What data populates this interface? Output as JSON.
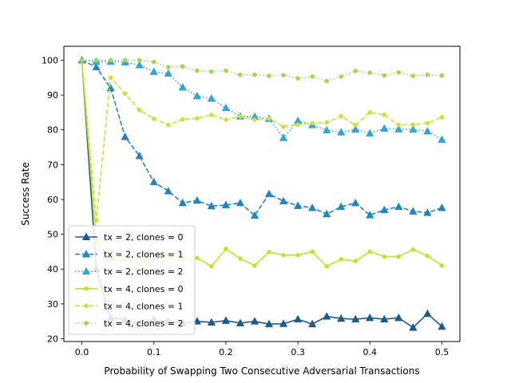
{
  "chart_data": {
    "type": "line",
    "title": "",
    "xlabel": "Probability of Swapping Two Consecutive Adversarial Transactions",
    "ylabel": "Success Rate",
    "xlim": [
      -0.025,
      0.525
    ],
    "ylim": [
      19.2,
      104
    ],
    "xticks": [
      0.0,
      0.1,
      0.2,
      0.3,
      0.4,
      0.5
    ],
    "xtick_labels": [
      "0.0",
      "0.1",
      "0.2",
      "0.3",
      "0.4",
      "0.5"
    ],
    "yticks": [
      20,
      30,
      40,
      50,
      60,
      70,
      80,
      90,
      100
    ],
    "ytick_labels": [
      "20",
      "30",
      "40",
      "50",
      "60",
      "70",
      "80",
      "90",
      "100"
    ],
    "grid": false,
    "legend_position": "lower-left",
    "x": [
      0.0,
      0.02,
      0.04,
      0.06,
      0.08,
      0.1,
      0.12,
      0.14,
      0.16,
      0.18,
      0.2,
      0.22,
      0.24,
      0.26,
      0.28,
      0.3,
      0.32,
      0.34,
      0.36,
      0.38,
      0.4,
      0.42,
      0.44,
      0.46,
      0.48,
      0.5
    ],
    "series": [
      {
        "name": "tx = 2, clones = 0",
        "color": "#1a5b8e",
        "linestyle": "solid",
        "marker": "triangle",
        "values": [
          100,
          40,
          26,
          25.5,
          24,
          25.5,
          25,
          24.5,
          25,
          24.7,
          25.2,
          24.5,
          25,
          24.2,
          24.3,
          25.6,
          24.2,
          26.4,
          25.8,
          25.6,
          26,
          25.6,
          26,
          23.2,
          27.2,
          23.5
        ]
      },
      {
        "name": "tx = 2, clones = 1",
        "color": "#1d87c3",
        "linestyle": "dashed",
        "marker": "triangle",
        "values": [
          100,
          98,
          92,
          78,
          72.5,
          65,
          62.4,
          59,
          59.7,
          58.1,
          58.4,
          59,
          55.4,
          61.6,
          59.5,
          58.2,
          57.6,
          55.8,
          57.9,
          59,
          55.5,
          57,
          57.9,
          56.6,
          56.2,
          57.6
        ]
      },
      {
        "name": "tx = 2, clones = 2",
        "color": "#2ca6e2",
        "linestyle": "dotted",
        "marker": "triangle",
        "values": [
          100,
          99.6,
          99.6,
          99.4,
          98.6,
          96.7,
          96.2,
          92.2,
          89.7,
          89,
          86.3,
          83.9,
          83.8,
          83.2,
          77.7,
          82.6,
          81.4,
          79.9,
          79.3,
          80.1,
          79,
          80.4,
          80.2,
          80.1,
          79.6,
          77.2
        ]
      },
      {
        "name": "tx = 4, clones = 0",
        "color": "#c6e41c",
        "linestyle": "solid",
        "marker": "dot",
        "values": [
          100,
          48,
          43,
          42.5,
          41.5,
          42.5,
          44,
          42.8,
          43.2,
          40.8,
          45.8,
          43,
          41,
          44.9,
          44,
          44,
          45,
          40.8,
          42.8,
          42.3,
          45,
          43.6,
          43.6,
          45.6,
          43.8,
          41
        ]
      },
      {
        "name": "tx = 4, clones = 1",
        "color": "#c9e52e",
        "linestyle": "dashed",
        "marker": "dot",
        "values": [
          100,
          54,
          95,
          90.4,
          85.7,
          83.2,
          81.4,
          83,
          83.3,
          84.3,
          82.9,
          83.9,
          82.9,
          83.2,
          80.9,
          81.5,
          81.9,
          82.1,
          83.9,
          81.4,
          85,
          84.3,
          81.4,
          81.5,
          81.9,
          83.6
        ]
      },
      {
        "name": "tx = 4, clones = 2",
        "color": "#a3d84b",
        "linestyle": "dotted",
        "marker": "dot",
        "values": [
          100,
          100,
          100,
          100,
          100,
          99.5,
          98,
          98.2,
          97,
          96.7,
          97,
          95.8,
          95.8,
          95.5,
          95.7,
          94.8,
          95.3,
          94,
          95.3,
          96.9,
          96.4,
          95.6,
          96.5,
          95.5,
          95.8,
          95.6
        ]
      }
    ]
  }
}
